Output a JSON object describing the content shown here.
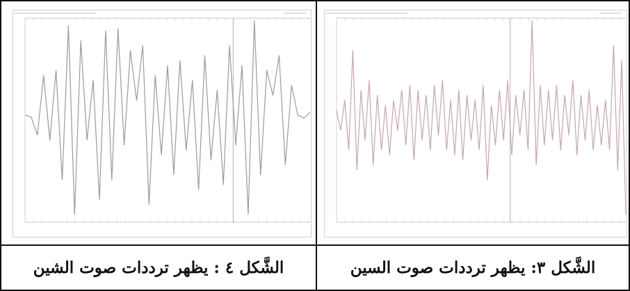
{
  "figures": [
    {
      "caption": "الشَّكل ٤ : يظهر ترددات صوت الشين",
      "trace_color": "#9a9a9a",
      "waveform": [
        0.05,
        0.03,
        -0.15,
        0.45,
        -0.2,
        0.5,
        -0.6,
        0.95,
        -0.95,
        0.8,
        -0.2,
        0.4,
        -0.8,
        0.9,
        -0.6,
        0.92,
        -0.25,
        0.7,
        0.2,
        0.75,
        -0.85,
        0.45,
        -0.35,
        0.55,
        -0.55,
        0.6,
        -0.3,
        0.4,
        -0.7,
        0.65,
        -0.4,
        0.3,
        -0.65,
        0.75,
        -0.25,
        0.55,
        -0.95,
        1.0,
        -0.55,
        0.5,
        0.25,
        0.65,
        -0.45,
        0.35,
        0.05,
        0.02,
        0.08
      ]
    },
    {
      "caption": "الشَّكل ٣: يظهر ترددات صوت السين",
      "trace_color": "#c9a3ad",
      "waveform": [
        0.1,
        -0.1,
        0.2,
        -0.3,
        0.7,
        -0.5,
        0.3,
        -0.2,
        0.4,
        -0.45,
        0.25,
        -0.3,
        0.15,
        -0.35,
        0.2,
        -0.1,
        0.3,
        -0.25,
        0.35,
        -0.4,
        0.3,
        -0.2,
        0.25,
        -0.3,
        0.35,
        -0.15,
        0.4,
        -0.3,
        0.2,
        -0.35,
        0.3,
        -0.4,
        0.25,
        -0.2,
        0.2,
        -0.3,
        0.35,
        -0.6,
        0.15,
        -0.25,
        0.3,
        -0.2,
        0.4,
        -0.35,
        0.25,
        -0.15,
        0.3,
        -0.3,
        1.0,
        -0.45,
        0.35,
        -0.25,
        0.3,
        -0.2,
        0.35,
        -0.3,
        0.25,
        -0.15,
        0.4,
        -0.35,
        0.25,
        -0.2,
        0.3,
        -0.3,
        0.15,
        -0.25,
        0.2,
        -0.3,
        0.75,
        -0.5,
        0.6,
        -0.95
      ]
    }
  ]
}
